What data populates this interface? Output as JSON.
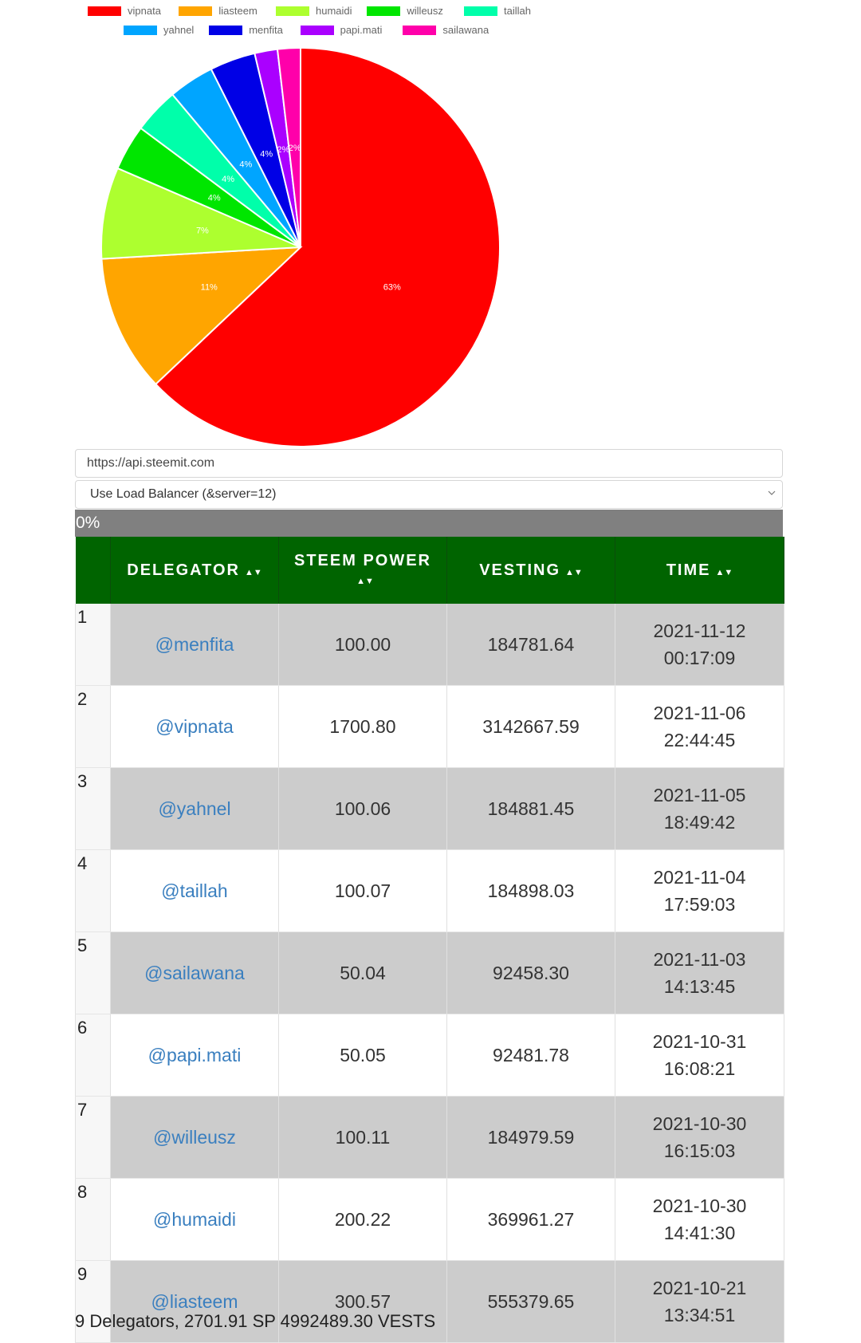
{
  "chart_data": {
    "type": "pie",
    "legend": [
      "vipnata",
      "liasteem",
      "humaidi",
      "willeusz",
      "taillah",
      "yahnel",
      "menfita",
      "papi.mati",
      "sailawana"
    ],
    "values": [
      1700.8,
      300.57,
      200.22,
      100.11,
      100.07,
      100.06,
      100.0,
      50.05,
      50.04
    ],
    "labels": [
      "63%",
      "11%",
      "7%",
      "4%",
      "4%",
      "4%",
      "4%",
      "2%",
      "2%"
    ],
    "colors": [
      "#ff0000",
      "#ffa500",
      "#adff2f",
      "#00e600",
      "#00ffaa",
      "#00a5ff",
      "#0000e6",
      "#aa00ff",
      "#ff00aa"
    ],
    "legend_placement": "top-center"
  },
  "api": {
    "url": "https://api.steemit.com"
  },
  "server": {
    "selected": "Use Load Balancer (&server=12)"
  },
  "progress": {
    "label": "0%"
  },
  "table": {
    "headers": {
      "delegator": "DELEGATOR",
      "steem_power": "STEEM POWER",
      "vesting": "VESTING",
      "time": "TIME"
    },
    "sort_icon": "▲▼",
    "rows": [
      {
        "idx": "1",
        "delegator": "@menfita",
        "sp": "100.00",
        "vesting": "184781.64",
        "date": "2021-11-12",
        "clock": "00:17:09"
      },
      {
        "idx": "2",
        "delegator": "@vipnata",
        "sp": "1700.80",
        "vesting": "3142667.59",
        "date": "2021-11-06",
        "clock": "22:44:45"
      },
      {
        "idx": "3",
        "delegator": "@yahnel",
        "sp": "100.06",
        "vesting": "184881.45",
        "date": "2021-11-05",
        "clock": "18:49:42"
      },
      {
        "idx": "4",
        "delegator": "@taillah",
        "sp": "100.07",
        "vesting": "184898.03",
        "date": "2021-11-04",
        "clock": "17:59:03"
      },
      {
        "idx": "5",
        "delegator": "@sailawana",
        "sp": "50.04",
        "vesting": "92458.30",
        "date": "2021-11-03",
        "clock": "14:13:45"
      },
      {
        "idx": "6",
        "delegator": "@papi.mati",
        "sp": "50.05",
        "vesting": "92481.78",
        "date": "2021-10-31",
        "clock": "16:08:21"
      },
      {
        "idx": "7",
        "delegator": "@willeusz",
        "sp": "100.11",
        "vesting": "184979.59",
        "date": "2021-10-30",
        "clock": "16:15:03"
      },
      {
        "idx": "8",
        "delegator": "@humaidi",
        "sp": "200.22",
        "vesting": "369961.27",
        "date": "2021-10-30",
        "clock": "14:41:30"
      },
      {
        "idx": "9",
        "delegator": "@liasteem",
        "sp": "300.57",
        "vesting": "555379.65",
        "date": "2021-10-21",
        "clock": "13:34:51"
      }
    ]
  },
  "footer": {
    "summary": "9 Delegators, 2701.91 SP 4992489.30 VESTS"
  }
}
